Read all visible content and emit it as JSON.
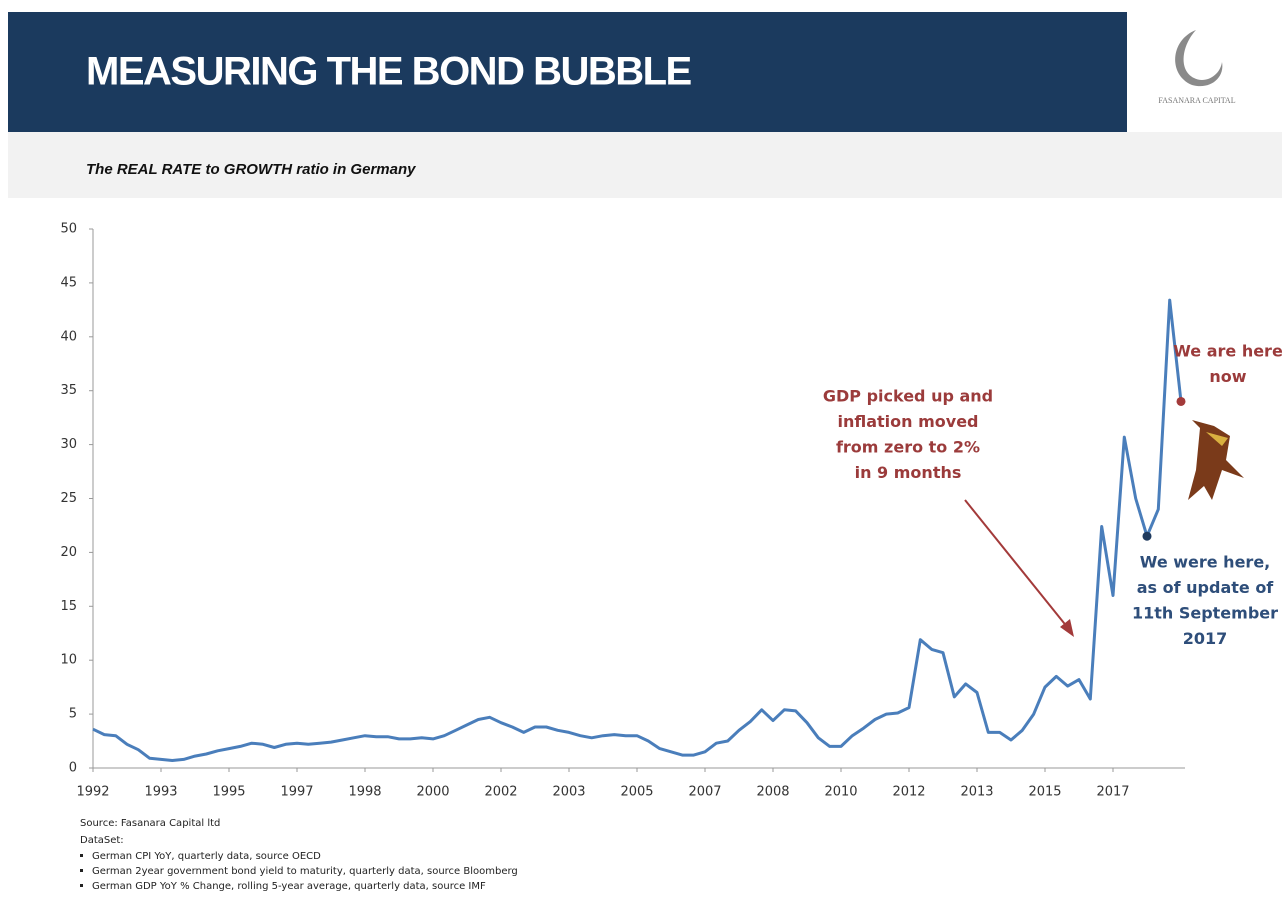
{
  "header": {
    "title": "MEASURING THE BOND BUBBLE",
    "logo": "FASANARA CAPITAL"
  },
  "subtitle": "The REAL RATE to GROWTH ratio in Germany",
  "chart_data": {
    "type": "line",
    "categories": [
      "1992",
      null,
      null,
      null,
      null,
      null,
      "1993",
      null,
      null,
      null,
      null,
      null,
      "1995",
      null,
      null,
      null,
      null,
      null,
      "1997",
      null,
      null,
      null,
      null,
      null,
      "1998",
      null,
      null,
      null,
      null,
      null,
      "2000",
      null,
      null,
      null,
      null,
      null,
      "2002",
      null,
      null,
      null,
      null,
      null,
      "2003",
      null,
      null,
      null,
      null,
      null,
      "2005",
      null,
      null,
      null,
      null,
      null,
      "2007",
      null,
      null,
      null,
      null,
      null,
      "2008",
      null,
      null,
      null,
      null,
      null,
      "2010",
      null,
      null,
      null,
      null,
      null,
      "2012",
      null,
      null,
      null,
      null,
      null,
      "2013",
      null,
      null,
      null,
      null,
      null,
      "2015",
      null,
      null,
      null,
      null,
      null,
      "2017",
      null,
      null,
      null,
      null,
      null,
      null
    ],
    "series": [
      {
        "name": "Real rate to growth ratio",
        "color": "#4a7ebb",
        "values": [
          3.6,
          3.1,
          3.0,
          2.2,
          1.7,
          0.9,
          0.8,
          0.7,
          0.8,
          1.1,
          1.3,
          1.6,
          1.8,
          2.0,
          2.3,
          2.2,
          1.9,
          2.2,
          2.3,
          2.2,
          2.3,
          2.4,
          2.6,
          2.8,
          3.0,
          2.9,
          2.9,
          2.7,
          2.7,
          2.8,
          2.7,
          3.0,
          3.5,
          4.0,
          4.5,
          4.7,
          4.2,
          3.8,
          3.3,
          3.8,
          3.8,
          3.5,
          3.3,
          3.0,
          2.8,
          3.0,
          3.1,
          3.0,
          3.0,
          2.5,
          1.8,
          1.5,
          1.2,
          1.2,
          1.5,
          2.3,
          2.5,
          3.5,
          4.3,
          5.4,
          4.4,
          5.4,
          5.3,
          4.2,
          2.8,
          2.0,
          2.0,
          3.0,
          3.7,
          4.5,
          5.0,
          5.1,
          5.6,
          11.9,
          11.0,
          10.7,
          6.6,
          7.8,
          7.0,
          3.3,
          3.3,
          2.6,
          3.5,
          5.0,
          7.5,
          8.5,
          7.6,
          8.2,
          6.4,
          22.4,
          16.0,
          30.7,
          25.0,
          21.5,
          24.0,
          43.4,
          34.0
        ]
      }
    ],
    "ylim": [
      0,
      50
    ],
    "yticks": [
      0,
      5,
      10,
      15,
      20,
      25,
      30,
      35,
      40,
      45,
      50
    ],
    "annotations": [
      [
        "GDP picked up and",
        "inflation moved",
        "from zero to 2%",
        "in 9 months"
      ],
      [
        "We are here",
        "now"
      ],
      [
        "We were here,",
        "as of update of",
        "11th September",
        "2017"
      ]
    ]
  },
  "footer": {
    "source": "Source: Fasanara Capital ltd",
    "dataset_label": "DataSet:",
    "dataset": [
      "German CPI YoY, quarterly data, source OECD",
      "German 2year government bond yield to maturity, quarterly data, source Bloomberg",
      "German GDP YoY % Change, rolling 5-year average, quarterly data, source IMF"
    ]
  }
}
